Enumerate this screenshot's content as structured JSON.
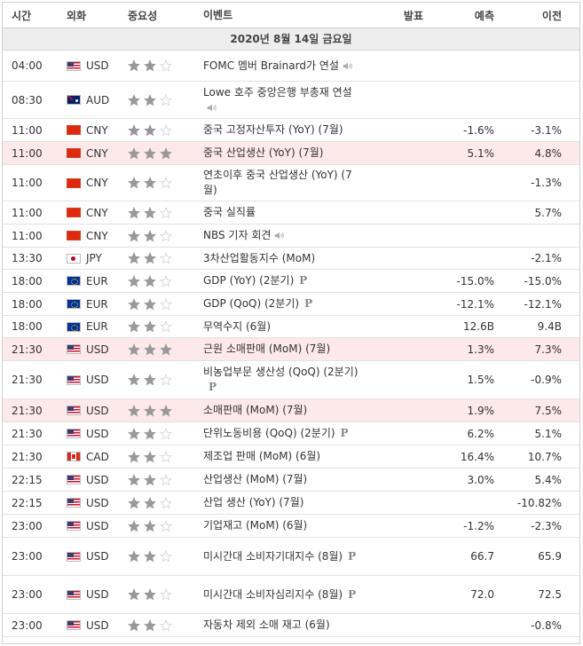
{
  "columns": {
    "time": "시간",
    "currency": "외화",
    "importance": "중요성",
    "event": "이벤트",
    "actual": "발표",
    "forecast": "예측",
    "previous": "이전"
  },
  "date_header": "2020년 8월 14일 금요일",
  "colors": {
    "star_on": "#999999",
    "star_off": "#d6d6d6",
    "highlight": "#fde8ea"
  },
  "rows": [
    {
      "time": "04:00",
      "flag": "us",
      "currency": "USD",
      "stars": 2,
      "event": "FOMC 멤버 Brainard가 연설",
      "actual": "",
      "forecast": "",
      "previous": "",
      "speech": true,
      "prelim": false,
      "hl": false,
      "h": 35
    },
    {
      "time": "08:30",
      "flag": "au",
      "currency": "AUD",
      "stars": 2,
      "event": "Lowe 호주 중앙은행 부총재 연설",
      "actual": "",
      "forecast": "",
      "previous": "",
      "speech": true,
      "prelim": false,
      "hl": false,
      "h": 42
    },
    {
      "time": "11:00",
      "flag": "cn",
      "currency": "CNY",
      "stars": 2,
      "event": "중국 고정자산투자 (YoY) (7월)",
      "actual": "",
      "forecast": "-1.6%",
      "previous": "-3.1%",
      "speech": false,
      "prelim": false,
      "hl": false,
      "h": 26
    },
    {
      "time": "11:00",
      "flag": "cn",
      "currency": "CNY",
      "stars": 3,
      "event": "중국 산업생산 (YoY) (7월)",
      "actual": "",
      "forecast": "5.1%",
      "previous": "4.8%",
      "speech": false,
      "prelim": false,
      "hl": true,
      "h": 26
    },
    {
      "time": "11:00",
      "flag": "cn",
      "currency": "CNY",
      "stars": 2,
      "event": "연초이후 중국 산업생산 (YoY) (7월)",
      "actual": "",
      "forecast": "",
      "previous": "-1.3%",
      "speech": false,
      "prelim": false,
      "hl": false,
      "h": 41
    },
    {
      "time": "11:00",
      "flag": "cn",
      "currency": "CNY",
      "stars": 2,
      "event": "중국 실직률",
      "actual": "",
      "forecast": "",
      "previous": "5.7%",
      "speech": false,
      "prelim": false,
      "hl": false,
      "h": 26
    },
    {
      "time": "11:00",
      "flag": "cn",
      "currency": "CNY",
      "stars": 2,
      "event": "NBS 기자 회견",
      "actual": "",
      "forecast": "",
      "previous": "",
      "speech": true,
      "prelim": false,
      "hl": false,
      "h": 26
    },
    {
      "time": "13:30",
      "flag": "jp",
      "currency": "JPY",
      "stars": 2,
      "event": "3차산업활동지수 (MoM)",
      "actual": "",
      "forecast": "",
      "previous": "-2.1%",
      "speech": false,
      "prelim": false,
      "hl": false,
      "h": 25
    },
    {
      "time": "18:00",
      "flag": "eu",
      "currency": "EUR",
      "stars": 2,
      "event": "GDP (YoY) (2분기)",
      "actual": "",
      "forecast": "-15.0%",
      "previous": "-15.0%",
      "speech": false,
      "prelim": true,
      "hl": false,
      "h": 26
    },
    {
      "time": "18:00",
      "flag": "eu",
      "currency": "EUR",
      "stars": 2,
      "event": "GDP (QoQ) (2분기)",
      "actual": "",
      "forecast": "-12.1%",
      "previous": "-12.1%",
      "speech": false,
      "prelim": true,
      "hl": false,
      "h": 26
    },
    {
      "time": "18:00",
      "flag": "eu",
      "currency": "EUR",
      "stars": 2,
      "event": "무역수지 (6월)",
      "actual": "",
      "forecast": "12.6B",
      "previous": "9.4B",
      "speech": false,
      "prelim": false,
      "hl": false,
      "h": 25
    },
    {
      "time": "21:30",
      "flag": "us",
      "currency": "USD",
      "stars": 3,
      "event": "근원 소매판매 (MoM) (7월)",
      "actual": "",
      "forecast": "1.3%",
      "previous": "7.3%",
      "speech": false,
      "prelim": false,
      "hl": true,
      "h": 26
    },
    {
      "time": "21:30",
      "flag": "us",
      "currency": "USD",
      "stars": 2,
      "event": "비농업부문 생산성 (QoQ) (2분기)",
      "actual": "",
      "forecast": "1.5%",
      "previous": "-0.9%",
      "speech": false,
      "prelim": true,
      "hl": false,
      "h": 43
    },
    {
      "time": "21:30",
      "flag": "us",
      "currency": "USD",
      "stars": 3,
      "event": "소매판매 (MoM) (7월)",
      "actual": "",
      "forecast": "1.9%",
      "previous": "7.5%",
      "speech": false,
      "prelim": false,
      "hl": true,
      "h": 26
    },
    {
      "time": "21:30",
      "flag": "us",
      "currency": "USD",
      "stars": 2,
      "event": "단위노동비용 (QoQ) (2분기)",
      "actual": "",
      "forecast": "6.2%",
      "previous": "5.1%",
      "speech": false,
      "prelim": true,
      "hl": false,
      "h": 26
    },
    {
      "time": "21:30",
      "flag": "ca",
      "currency": "CAD",
      "stars": 2,
      "event": "제조업 판매 (MoM) (6월)",
      "actual": "",
      "forecast": "16.4%",
      "previous": "10.7%",
      "speech": false,
      "prelim": false,
      "hl": false,
      "h": 26
    },
    {
      "time": "22:15",
      "flag": "us",
      "currency": "USD",
      "stars": 2,
      "event": "산업생산 (MoM) (7월)",
      "actual": "",
      "forecast": "3.0%",
      "previous": "5.4%",
      "speech": false,
      "prelim": false,
      "hl": false,
      "h": 26
    },
    {
      "time": "22:15",
      "flag": "us",
      "currency": "USD",
      "stars": 2,
      "event": "산업 생산 (YoY) (7월)",
      "actual": "",
      "forecast": "",
      "previous": "-10.82%",
      "speech": false,
      "prelim": false,
      "hl": false,
      "h": 26
    },
    {
      "time": "23:00",
      "flag": "us",
      "currency": "USD",
      "stars": 2,
      "event": "기업재고 (MoM) (6월)",
      "actual": "",
      "forecast": "-1.2%",
      "previous": "-2.3%",
      "speech": false,
      "prelim": false,
      "hl": false,
      "h": 26
    },
    {
      "time": "23:00",
      "flag": "us",
      "currency": "USD",
      "stars": 2,
      "event": "미시간대 소비자기대지수 (8월)",
      "actual": "",
      "forecast": "66.7",
      "previous": "65.9",
      "speech": false,
      "prelim": true,
      "hl": false,
      "h": 43
    },
    {
      "time": "23:00",
      "flag": "us",
      "currency": "USD",
      "stars": 2,
      "event": "미시간대 소비자심리지수 (8월)",
      "actual": "",
      "forecast": "72.0",
      "previous": "72.5",
      "speech": false,
      "prelim": true,
      "hl": false,
      "h": 43
    },
    {
      "time": "23:00",
      "flag": "us",
      "currency": "USD",
      "stars": 2,
      "event": "자동차 제외 소매 재고 (6월)",
      "actual": "",
      "forecast": "",
      "previous": "-0.8%",
      "speech": false,
      "prelim": false,
      "hl": false,
      "h": 26
    }
  ]
}
